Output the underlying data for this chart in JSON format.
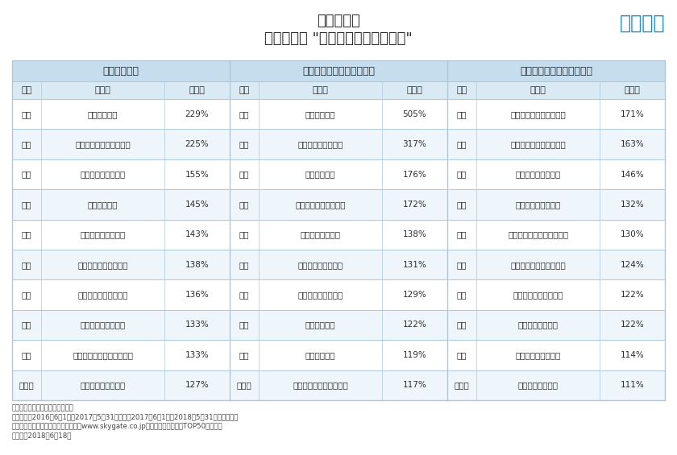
{
  "title_line1": "国内空港別",
  "title_line2": "人気急上昇 \"海外旅行先ランキング\"",
  "logo_text": "エアトリ",
  "logo_color": "#1a8cc7",
  "fukuoka_header": "「福岡空港」",
  "osaka_header": "「大阪（関西国際空港）」",
  "aichi_header": "「愛知（中部国際空港）」",
  "col_headers": [
    "順位",
    "都市名",
    "前年比"
  ],
  "fukuoka_data": [
    [
      "１位",
      "済州（韓国）",
      "229%"
    ],
    [
      "２位",
      "バルセロナ（スペイン）",
      "225%"
    ],
    [
      "３位",
      "ローマ（イタリア）",
      "155%"
    ],
    [
      "４位",
      "西安（中国）",
      "145%"
    ],
    [
      "５位",
      "ミラノ（イタリア）",
      "143%"
    ],
    [
      "６位",
      "マニラ（フィリピン）",
      "138%"
    ],
    [
      "７位",
      "ホノルル（アメリカ）",
      "136%"
    ],
    [
      "８位",
      "チェンマイ（タイ）",
      "133%"
    ],
    [
      "９位",
      "ニューヨーク（アメリカ）",
      "133%"
    ],
    [
      "１０位",
      "ハノイ（ベトナム）",
      "127%"
    ]
  ],
  "osaka_data": [
    [
      "１位",
      "済州（韓国）",
      "505%"
    ],
    [
      "２位",
      "ダナン（ベトナム）",
      "317%"
    ],
    [
      "３位",
      "大邱（韓国）",
      "176%"
    ],
    [
      "４位",
      "ホノルル（アメリカ）",
      "172%"
    ],
    [
      "５位",
      "ハルビン（中国）",
      "138%"
    ],
    [
      "６位",
      "ローマ（イタリア）",
      "131%"
    ],
    [
      "７位",
      "ハノイ（ベトナム）",
      "129%"
    ],
    [
      "８位",
      "高雄（台湾）",
      "122%"
    ],
    [
      "９位",
      "香港（中国）",
      "119%"
    ],
    [
      "１０位",
      "バルセロナ（スペイン）",
      "117%"
    ]
  ],
  "aichi_data": [
    [
      "１位",
      "バンクーバー（カナダ）",
      "171%"
    ],
    [
      "２位",
      "バルセロナ（スペイン）",
      "163%"
    ],
    [
      "３位",
      "ローマ（イタリア）",
      "146%"
    ],
    [
      "４位",
      "ダナン（ベトナム）",
      "132%"
    ],
    [
      "５位",
      "フランクフルト（ドイツ）",
      "130%"
    ],
    [
      "６位",
      "トリブバン（ネパール）",
      "124%"
    ],
    [
      "７位",
      "ホノルル（アメリカ）",
      "122%"
    ],
    [
      "８位",
      "プラハ（チェコ）",
      "122%"
    ],
    [
      "９位",
      "ハノイ（ベトナム）",
      "114%"
    ],
    [
      "１０位",
      "デリー（インド）",
      "111%"
    ]
  ],
  "footer_lines": [
    "対象サービス：日本発海外航空券",
    "対象期間：2016年6月1日～2017年5月31日出発と2017年6月1日～2018年5月31日出発の比較",
    "対象エリア：対象期間中のエアトリ（www.skygate.co.jp）における予約件数TOP50の目的地",
    "調査日：2018年6月18日"
  ],
  "bg_color": "#ffffff",
  "header_section_bg": "#c5dded",
  "subheader_bg": "#daeaf5",
  "row_alt1": "#ffffff",
  "row_alt2": "#eef6fb",
  "border_color": "#aac8de",
  "text_color": "#2a2a2a",
  "footer_color": "#444444"
}
